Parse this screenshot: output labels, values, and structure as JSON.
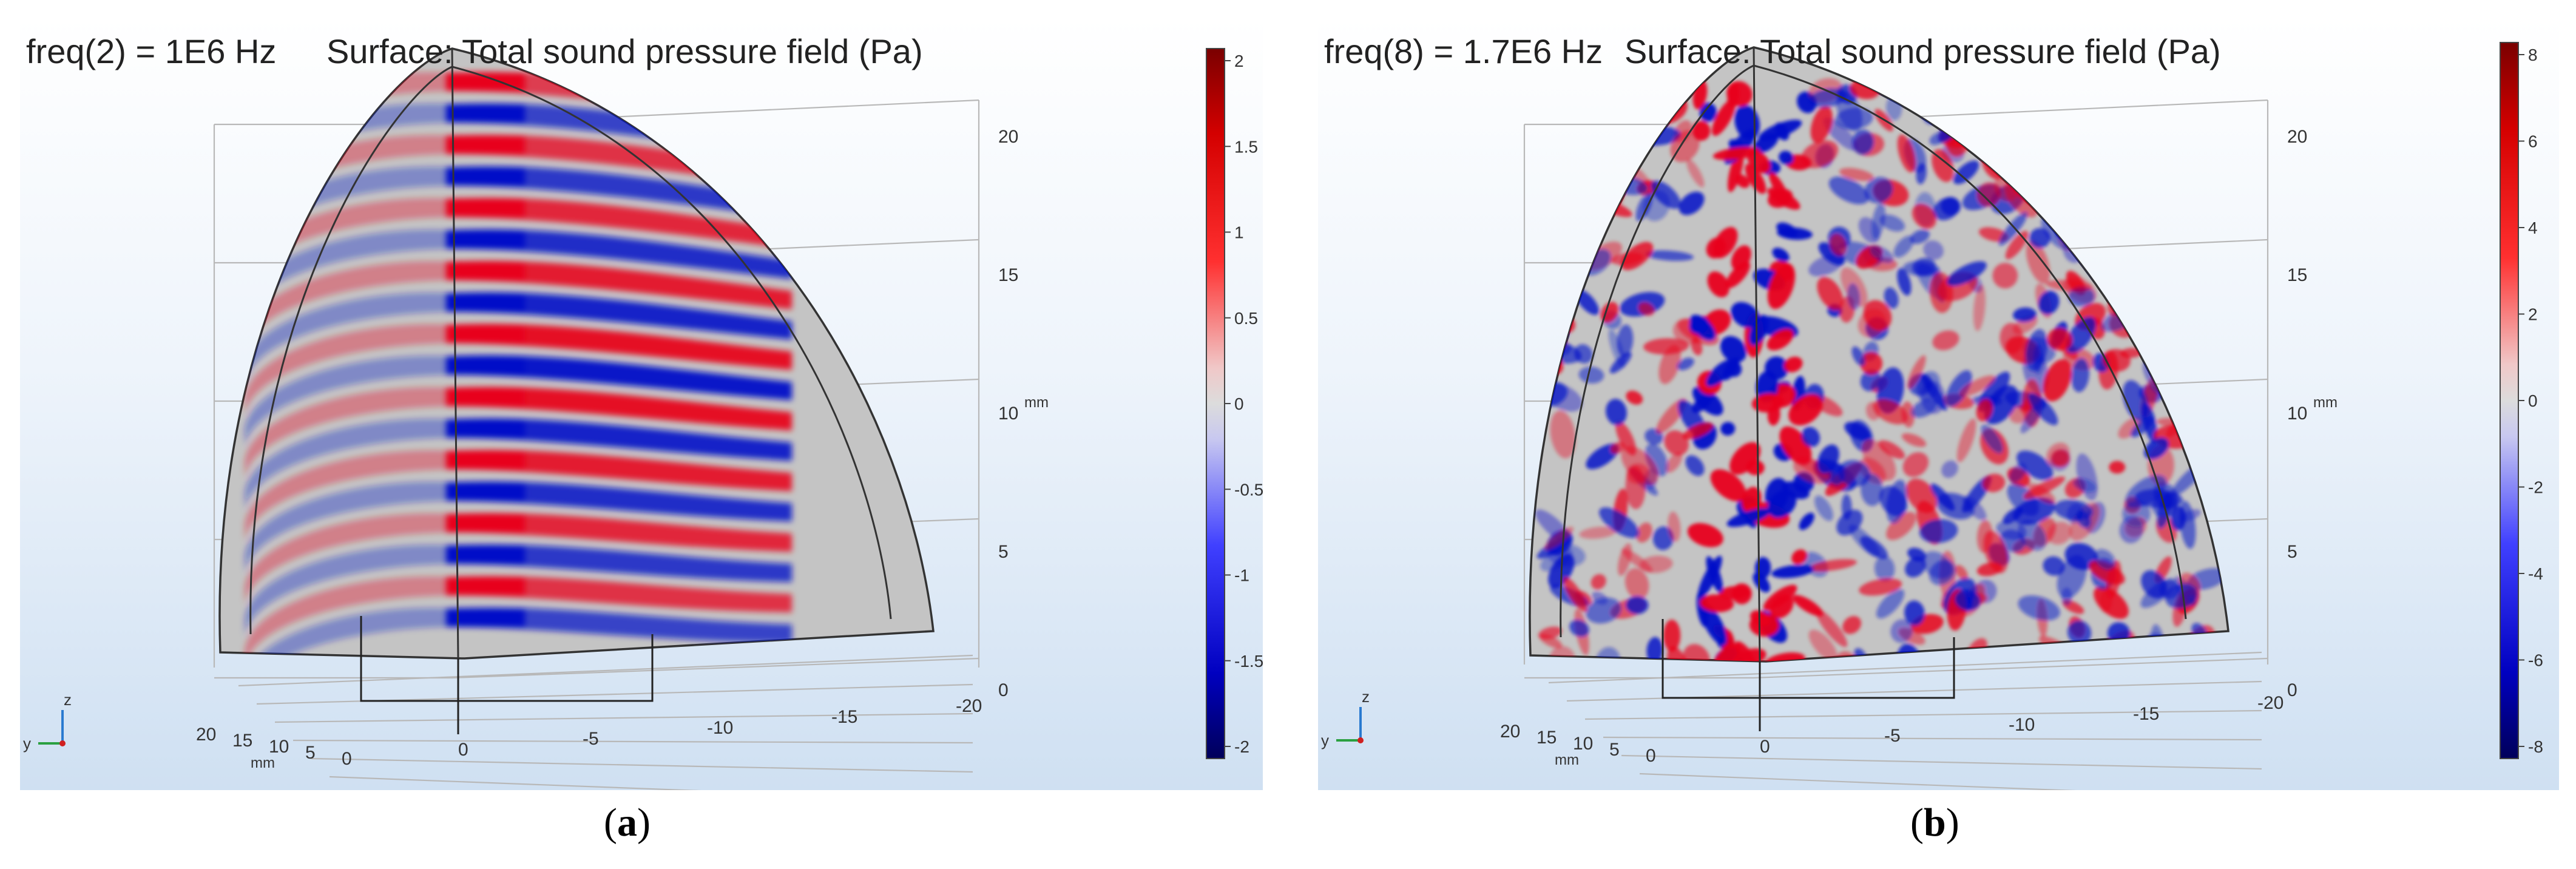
{
  "chart_data": [
    {
      "type": "heatmap",
      "panel": "a",
      "caption_letter": "a",
      "freq_label": "freq(2) = 1E6 Hz",
      "surface_label": "Surface: Total sound pressure field (Pa)",
      "colorbar": {
        "min": -2,
        "max": 2,
        "ticks": [
          "2",
          "1.5",
          "1",
          "0.5",
          "0",
          "-0.5",
          "-1",
          "-1.5",
          "-2"
        ]
      },
      "z_axis": {
        "unit": "mm",
        "ticks": [
          "20",
          "15",
          "10",
          "5",
          "0"
        ]
      },
      "y_axis": {
        "unit": "mm",
        "ticks": [
          "20",
          "15",
          "10",
          "5",
          "0"
        ]
      },
      "x_axis": {
        "ticks": [
          "0",
          "-5",
          "-10",
          "-15",
          "-20"
        ]
      },
      "triad": {
        "y": "y",
        "z": "z"
      },
      "pattern": "regular-bands"
    },
    {
      "type": "heatmap",
      "panel": "b",
      "caption_letter": "b",
      "freq_label": "freq(8) = 1.7E6 Hz",
      "surface_label": "Surface: Total sound pressure field (Pa)",
      "colorbar": {
        "min": -9,
        "max": 9,
        "ticks": [
          "8",
          "6",
          "4",
          "2",
          "0",
          "-2",
          "-4",
          "-6",
          "-8"
        ]
      },
      "z_axis": {
        "unit": "mm",
        "ticks": [
          "20",
          "15",
          "10",
          "5",
          "0"
        ]
      },
      "y_axis": {
        "unit": "mm",
        "ticks": [
          "20",
          "15",
          "10",
          "5",
          "0"
        ]
      },
      "x_axis": {
        "ticks": [
          "0",
          "-5",
          "-10",
          "-15",
          "-20"
        ]
      },
      "triad": {
        "y": "y",
        "z": "z"
      },
      "pattern": "speckle"
    }
  ],
  "colors": {
    "positive": "#e8001a",
    "negative": "#0010c8",
    "neutral": "#bdbdbd",
    "panel_top": "#ffffff",
    "panel_bottom": "#cfe0f2"
  }
}
